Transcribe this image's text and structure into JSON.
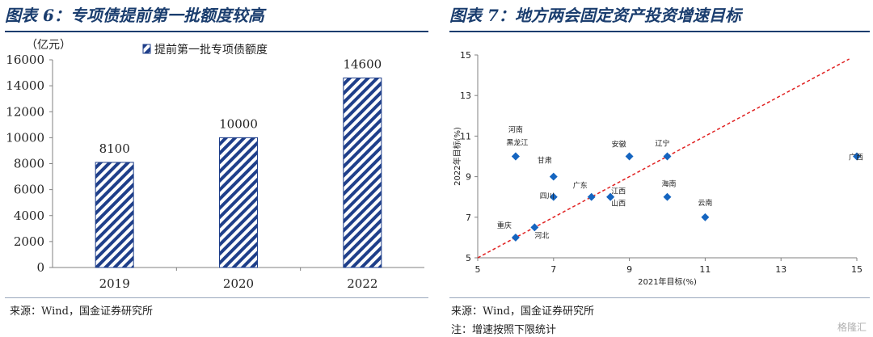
{
  "left_panel": {
    "title": "图表 6：专项债提前第一批额度较高",
    "source": "来源：Wind，国金证券研究所"
  },
  "right_panel": {
    "title": "图表 7：地方两会固定资产投资增速目标",
    "source": "来源：Wind，国金证券研究所",
    "note": "注：增速按照下限统计"
  },
  "watermark": "格隆汇",
  "colors": {
    "title": "#1a3d6e",
    "bar": "#1f3f8a",
    "point": "#1565c0",
    "trend": "#e02020"
  },
  "chart_data": [
    {
      "type": "bar",
      "title": "",
      "unit_label": "（亿元）",
      "categories": [
        "2019",
        "2020",
        "2022"
      ],
      "series": [
        {
          "name": "提前第一批专项债额度",
          "values": [
            8100,
            10000,
            14600
          ]
        }
      ],
      "data_labels": [
        "8100",
        "10000",
        "14600"
      ],
      "ylim": [
        0,
        16000
      ],
      "yticks": [
        0,
        2000,
        4000,
        6000,
        8000,
        10000,
        12000,
        14000,
        16000
      ],
      "pattern": "diagonal-stripes",
      "legend_position": "top"
    },
    {
      "type": "scatter",
      "title": "",
      "xlabel": "2021年目标(%)",
      "ylabel": "2022年目标(%)",
      "xlim": [
        5,
        15
      ],
      "ylim": [
        5,
        15
      ],
      "xticks": [
        5,
        7,
        9,
        11,
        13,
        15
      ],
      "yticks": [
        5,
        7,
        9,
        11,
        13,
        15
      ],
      "reference_line": {
        "from": [
          5,
          5
        ],
        "to": [
          14.8,
          14.8
        ],
        "style": "dashed"
      },
      "points": [
        {
          "label": "河南",
          "x": 6,
          "y": 10
        },
        {
          "label": "黑龙江",
          "x": 6,
          "y": 10
        },
        {
          "label": "甘肃",
          "x": 7,
          "y": 9
        },
        {
          "label": "四川",
          "x": 7,
          "y": 8
        },
        {
          "label": "广东",
          "x": 8,
          "y": 8
        },
        {
          "label": "江西",
          "x": 8.5,
          "y": 8
        },
        {
          "label": "山西",
          "x": 8.5,
          "y": 8
        },
        {
          "label": "安徽",
          "x": 9,
          "y": 10
        },
        {
          "label": "辽宁",
          "x": 10,
          "y": 10
        },
        {
          "label": "海南",
          "x": 10,
          "y": 8
        },
        {
          "label": "云南",
          "x": 11,
          "y": 7
        },
        {
          "label": "广西",
          "x": 15,
          "y": 10
        },
        {
          "label": "重庆",
          "x": 6,
          "y": 6
        },
        {
          "label": "河北",
          "x": 6.5,
          "y": 6.5
        }
      ]
    }
  ]
}
